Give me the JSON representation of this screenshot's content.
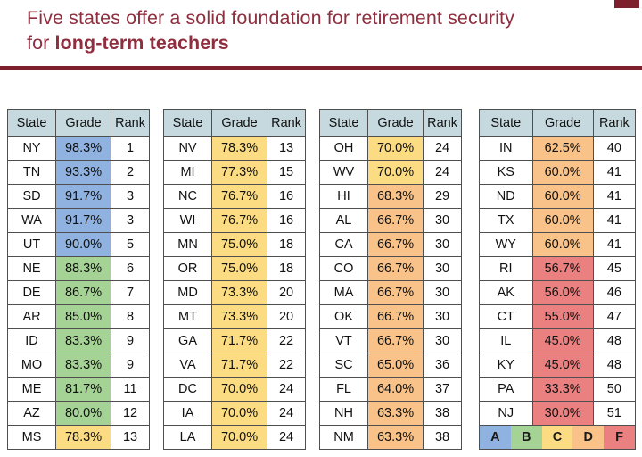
{
  "title": {
    "line1": "Five states offer a solid foundation for retirement security",
    "line2_prefix": "for ",
    "line2_bold": "long-term teachers"
  },
  "colors": {
    "maroon_text": "#8E2F3F",
    "maroon_line": "#7E1F2E",
    "header_bg": "#C5D9DF",
    "grade_A": "#8FB2E0",
    "grade_B": "#A5D295",
    "grade_C": "#FBDC82",
    "grade_D": "#F9C288",
    "grade_F": "#EA8080"
  },
  "table": {
    "headers": [
      "State",
      "Grade",
      "Rank"
    ],
    "groups": [
      {
        "rows": [
          {
            "state": "NY",
            "grade": "98.3%",
            "rank": "1",
            "band": "A"
          },
          {
            "state": "TN",
            "grade": "93.3%",
            "rank": "2",
            "band": "A"
          },
          {
            "state": "SD",
            "grade": "91.7%",
            "rank": "3",
            "band": "A"
          },
          {
            "state": "WA",
            "grade": "91.7%",
            "rank": "3",
            "band": "A"
          },
          {
            "state": "UT",
            "grade": "90.0%",
            "rank": "5",
            "band": "A"
          },
          {
            "state": "NE",
            "grade": "88.3%",
            "rank": "6",
            "band": "B"
          },
          {
            "state": "DE",
            "grade": "86.7%",
            "rank": "7",
            "band": "B"
          },
          {
            "state": "AR",
            "grade": "85.0%",
            "rank": "8",
            "band": "B"
          },
          {
            "state": "ID",
            "grade": "83.3%",
            "rank": "9",
            "band": "B"
          },
          {
            "state": "MO",
            "grade": "83.3%",
            "rank": "9",
            "band": "B"
          },
          {
            "state": "ME",
            "grade": "81.7%",
            "rank": "11",
            "band": "B"
          },
          {
            "state": "AZ",
            "grade": "80.0%",
            "rank": "12",
            "band": "B"
          },
          {
            "state": "MS",
            "grade": "78.3%",
            "rank": "13",
            "band": "C"
          }
        ]
      },
      {
        "rows": [
          {
            "state": "NV",
            "grade": "78.3%",
            "rank": "13",
            "band": "C"
          },
          {
            "state": "MI",
            "grade": "77.3%",
            "rank": "15",
            "band": "C"
          },
          {
            "state": "NC",
            "grade": "76.7%",
            "rank": "16",
            "band": "C"
          },
          {
            "state": "WI",
            "grade": "76.7%",
            "rank": "16",
            "band": "C"
          },
          {
            "state": "MN",
            "grade": "75.0%",
            "rank": "18",
            "band": "C"
          },
          {
            "state": "OR",
            "grade": "75.0%",
            "rank": "18",
            "band": "C"
          },
          {
            "state": "MD",
            "grade": "73.3%",
            "rank": "20",
            "band": "C"
          },
          {
            "state": "MT",
            "grade": "73.3%",
            "rank": "20",
            "band": "C"
          },
          {
            "state": "GA",
            "grade": "71.7%",
            "rank": "22",
            "band": "C"
          },
          {
            "state": "VA",
            "grade": "71.7%",
            "rank": "22",
            "band": "C"
          },
          {
            "state": "DC",
            "grade": "70.0%",
            "rank": "24",
            "band": "C"
          },
          {
            "state": "IA",
            "grade": "70.0%",
            "rank": "24",
            "band": "C"
          },
          {
            "state": "LA",
            "grade": "70.0%",
            "rank": "24",
            "band": "C"
          }
        ]
      },
      {
        "rows": [
          {
            "state": "OH",
            "grade": "70.0%",
            "rank": "24",
            "band": "C"
          },
          {
            "state": "WV",
            "grade": "70.0%",
            "rank": "24",
            "band": "C"
          },
          {
            "state": "HI",
            "grade": "68.3%",
            "rank": "29",
            "band": "D"
          },
          {
            "state": "AL",
            "grade": "66.7%",
            "rank": "30",
            "band": "D"
          },
          {
            "state": "CA",
            "grade": "66.7%",
            "rank": "30",
            "band": "D"
          },
          {
            "state": "CO",
            "grade": "66.7%",
            "rank": "30",
            "band": "D"
          },
          {
            "state": "MA",
            "grade": "66.7%",
            "rank": "30",
            "band": "D"
          },
          {
            "state": "OK",
            "grade": "66.7%",
            "rank": "30",
            "band": "D"
          },
          {
            "state": "VT",
            "grade": "66.7%",
            "rank": "30",
            "band": "D"
          },
          {
            "state": "SC",
            "grade": "65.0%",
            "rank": "36",
            "band": "D"
          },
          {
            "state": "FL",
            "grade": "64.0%",
            "rank": "37",
            "band": "D"
          },
          {
            "state": "NH",
            "grade": "63.3%",
            "rank": "38",
            "band": "D"
          },
          {
            "state": "NM",
            "grade": "63.3%",
            "rank": "38",
            "band": "D"
          }
        ]
      },
      {
        "rows": [
          {
            "state": "IN",
            "grade": "62.5%",
            "rank": "40",
            "band": "D"
          },
          {
            "state": "KS",
            "grade": "60.0%",
            "rank": "41",
            "band": "D"
          },
          {
            "state": "ND",
            "grade": "60.0%",
            "rank": "41",
            "band": "D"
          },
          {
            "state": "TX",
            "grade": "60.0%",
            "rank": "41",
            "band": "D"
          },
          {
            "state": "WY",
            "grade": "60.0%",
            "rank": "41",
            "band": "D"
          },
          {
            "state": "RI",
            "grade": "56.7%",
            "rank": "45",
            "band": "F"
          },
          {
            "state": "AK",
            "grade": "56.0%",
            "rank": "46",
            "band": "F"
          },
          {
            "state": "CT",
            "grade": "55.0%",
            "rank": "47",
            "band": "F"
          },
          {
            "state": "IL",
            "grade": "45.0%",
            "rank": "48",
            "band": "F"
          },
          {
            "state": "KY",
            "grade": "45.0%",
            "rank": "48",
            "band": "F"
          },
          {
            "state": "PA",
            "grade": "33.3%",
            "rank": "50",
            "band": "F"
          },
          {
            "state": "NJ",
            "grade": "30.0%",
            "rank": "51",
            "band": "F"
          }
        ]
      }
    ],
    "legend": [
      {
        "label": "A",
        "band": "A"
      },
      {
        "label": "B",
        "band": "B"
      },
      {
        "label": "C",
        "band": "C"
      },
      {
        "label": "D",
        "band": "D"
      },
      {
        "label": "F",
        "band": "F"
      }
    ]
  }
}
